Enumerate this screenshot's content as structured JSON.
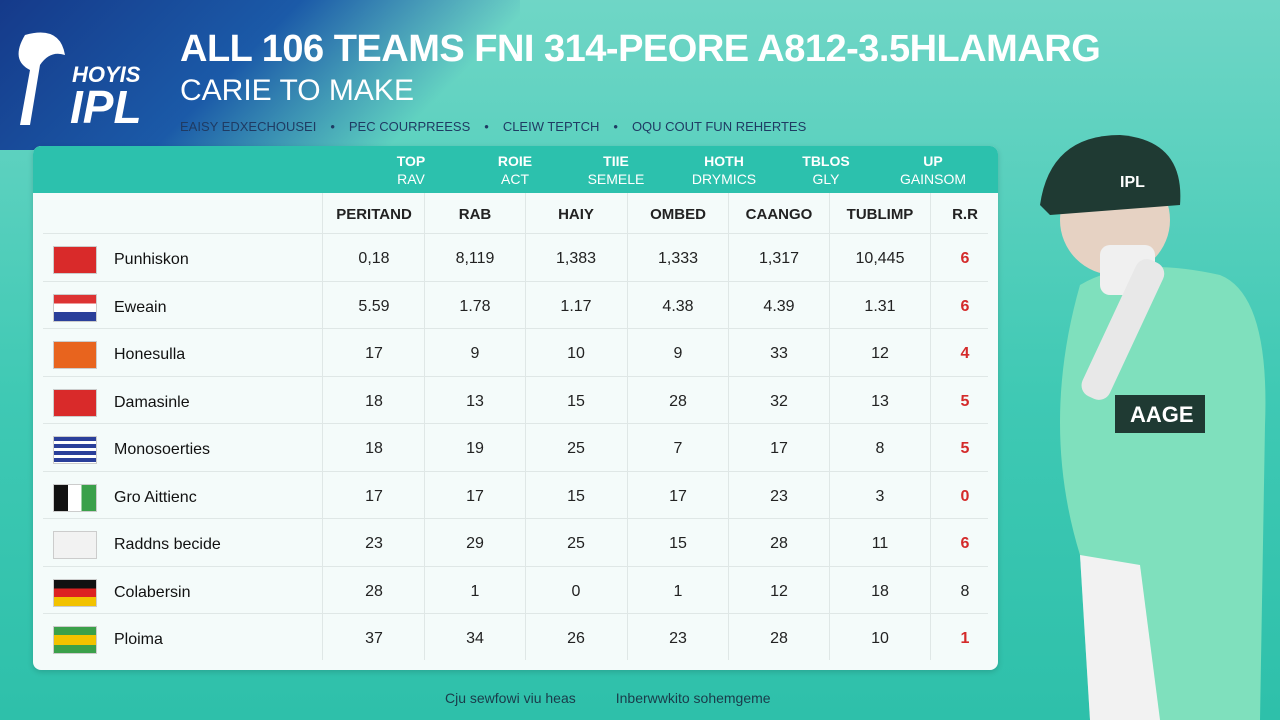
{
  "header": {
    "logo": {
      "small": "HOYIS",
      "big": "IPL"
    },
    "title": "ALL 106 TEAMS FNI 314-PEORE A812-3.5HLAMARG",
    "subtitle": "CARIE TO MAKE",
    "tags": [
      "EAISY EDXECHOUSEI",
      "PEC COURPREESS",
      "CLEIW TEPTCH",
      "OQU COUT FUN REHERTES"
    ]
  },
  "table": {
    "groups": [
      [
        "TOP",
        "RAV"
      ],
      [
        "ROIE",
        "ACT"
      ],
      [
        "TIIE",
        "SEMELE"
      ],
      [
        "HOTH",
        "DRYMICS"
      ],
      [
        "TBLOS",
        "GLY"
      ],
      [
        "UP",
        "GAINSOM"
      ]
    ],
    "columns": [
      "PERITAND",
      "RAB",
      "HAIY",
      "OMBED",
      "CAANGO",
      "TUBLIMP",
      "R.R"
    ],
    "rows": [
      [
        "Punhiskon",
        "0,18",
        "8,119",
        "1,383",
        "1,333",
        "1,317",
        "10,445",
        "6"
      ],
      [
        "Eweain",
        "5.59",
        "1.78",
        "1.17",
        "4.38",
        "4.39",
        "1.31",
        "6"
      ],
      [
        "Honesulla",
        "17",
        "9",
        "10",
        "9",
        "33",
        "12",
        "4"
      ],
      [
        "Damasinle",
        "18",
        "13",
        "15",
        "28",
        "32",
        "13",
        "5"
      ],
      [
        "Monosoerties",
        "18",
        "19",
        "25",
        "7",
        "17",
        "8",
        "5"
      ],
      [
        "Gro Aittienc",
        "17",
        "17",
        "15",
        "17",
        "23",
        "3",
        "0"
      ],
      [
        "Raddns becide",
        "23",
        "29",
        "25",
        "15",
        "28",
        "11",
        "6"
      ],
      [
        "Colabersin",
        "28",
        "1",
        "0",
        "1",
        "12",
        "18",
        "8"
      ],
      [
        "Ploima",
        "37",
        "34",
        "26",
        "23",
        "28",
        "10",
        "1"
      ]
    ]
  },
  "player": {
    "helmet": "IPL",
    "shirt": "AAGE"
  },
  "footer": [
    "Cju sewfowi viu heas",
    "Inberwwkito sohemgeme"
  ]
}
